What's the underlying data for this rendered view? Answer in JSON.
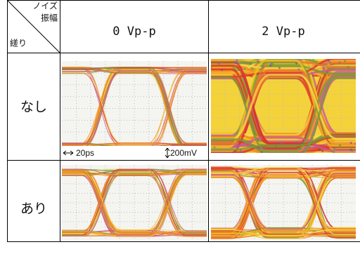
{
  "table": {
    "corner": {
      "top": [
        "ノイズ",
        "振幅"
      ],
      "bottom": "縒り"
    },
    "columns": [
      "0 Vp-p",
      "2 Vp-p"
    ],
    "rows": [
      "なし",
      "あり"
    ],
    "annotations": {
      "time_scale": "20ps",
      "voltage_scale": "200mV"
    }
  }
}
